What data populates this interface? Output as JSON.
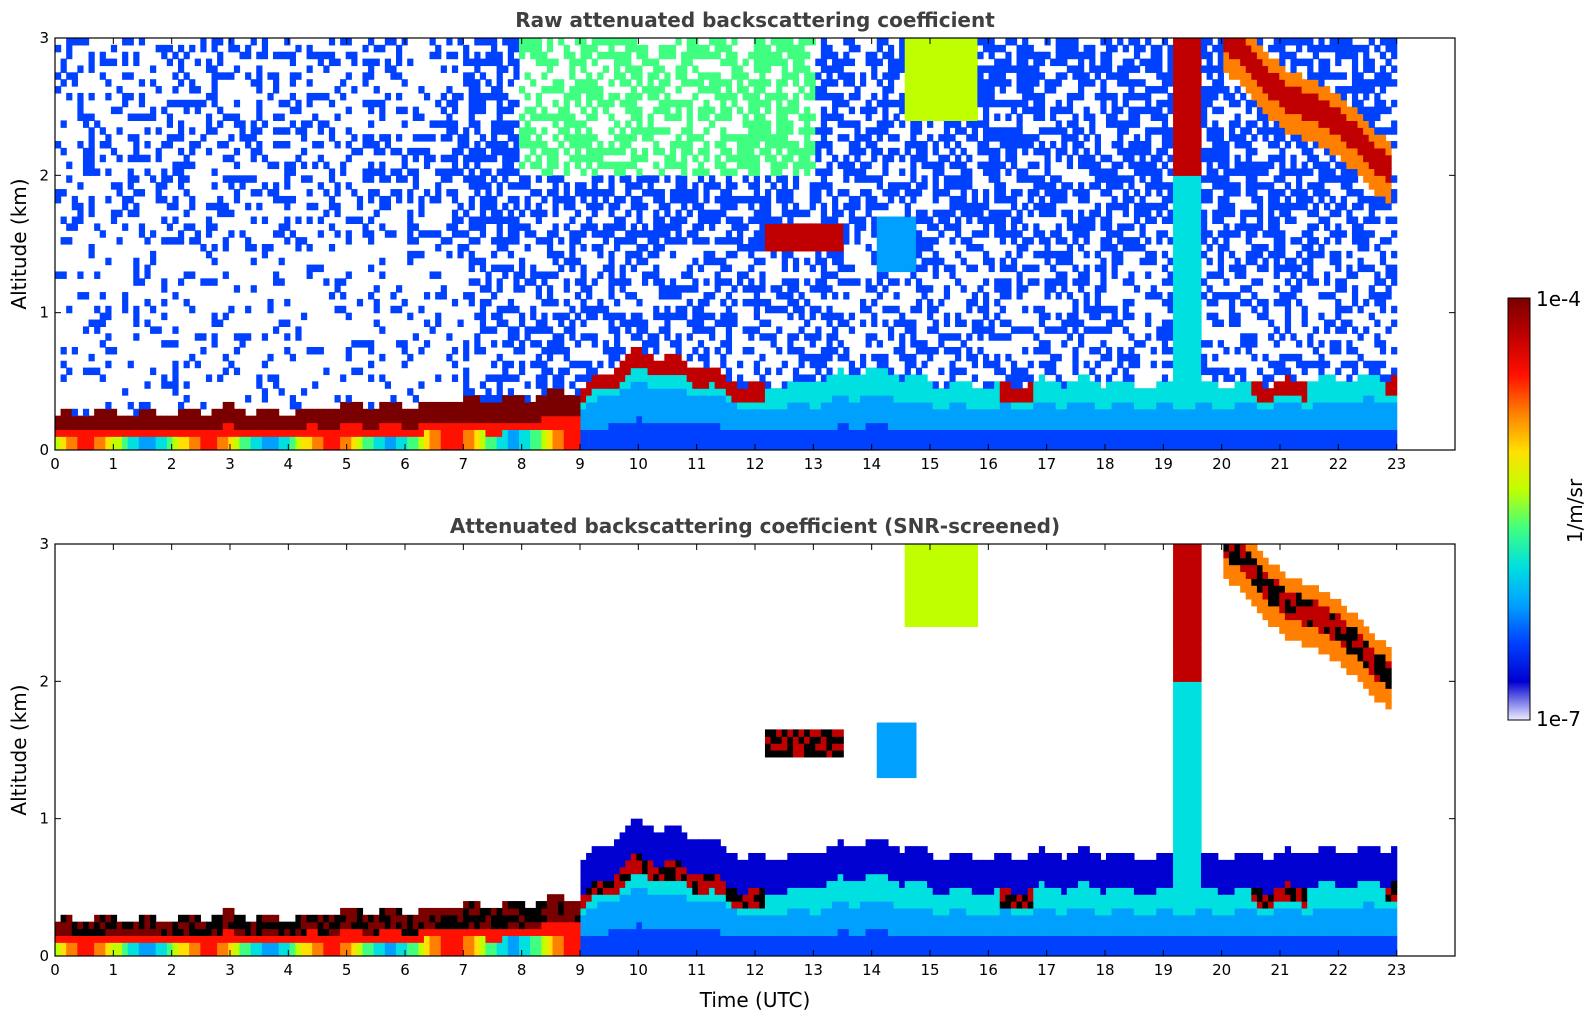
{
  "colors": {
    "jet": [
      "#eeeeff",
      "#0000d0",
      "#0040ff",
      "#00a0ff",
      "#00e0e0",
      "#40ff80",
      "#c0ff00",
      "#ffe000",
      "#ff8000",
      "#ff1000",
      "#c00000",
      "#7a0000"
    ],
    "saturated": "#000000"
  },
  "chart_data": [
    {
      "type": "heatmap",
      "title": "Raw attenuated backscattering coefficient",
      "xlabel": "",
      "ylabel": "Altitude (km)",
      "xlim": [
        0,
        24
      ],
      "ylim": [
        0,
        3
      ],
      "xticks": [
        0,
        1,
        2,
        3,
        4,
        5,
        6,
        7,
        8,
        9,
        10,
        11,
        12,
        13,
        14,
        15,
        16,
        17,
        18,
        19,
        20,
        21,
        22,
        23
      ],
      "yticks": [
        0,
        1,
        2,
        3
      ],
      "data_extent_hours": [
        0,
        23
      ],
      "features": [
        {
          "feature": "boundary layer top (km)",
          "x": [
            0,
            1,
            2,
            3,
            4,
            5,
            6,
            7,
            8,
            9,
            10,
            11,
            12,
            13,
            14,
            15,
            16,
            17,
            18,
            19,
            20,
            21,
            22,
            23
          ],
          "y": [
            0.25,
            0.28,
            0.27,
            0.3,
            0.28,
            0.32,
            0.33,
            0.36,
            0.38,
            0.45,
            0.72,
            0.62,
            0.45,
            0.5,
            0.6,
            0.5,
            0.45,
            0.5,
            0.5,
            0.47,
            0.48,
            0.5,
            0.52,
            0.55
          ]
        },
        {
          "feature": "elevated layer",
          "x_range": [
            12.2,
            13.5
          ],
          "y_range": [
            1.45,
            1.65
          ]
        },
        {
          "feature": "descending cloud",
          "x": [
            20.1,
            21,
            22,
            22.9
          ],
          "y": [
            3.0,
            2.6,
            2.4,
            2.0
          ]
        }
      ]
    },
    {
      "type": "heatmap",
      "title": "Attenuated backscattering coefficient (SNR-screened)",
      "xlabel": "Time (UTC)",
      "ylabel": "Altitude (km)",
      "xlim": [
        0,
        24
      ],
      "ylim": [
        0,
        3
      ],
      "xticks": [
        0,
        1,
        2,
        3,
        4,
        5,
        6,
        7,
        8,
        9,
        10,
        11,
        12,
        13,
        14,
        15,
        16,
        17,
        18,
        19,
        20,
        21,
        22,
        23
      ],
      "yticks": [
        0,
        1,
        2,
        3
      ]
    },
    {
      "type": "colorbar",
      "label": "1/m/sr",
      "scale": "log",
      "range": [
        "1e-7",
        "1e-4"
      ],
      "ticks": {
        "min": "1e-7",
        "max": "1e-4"
      }
    }
  ]
}
